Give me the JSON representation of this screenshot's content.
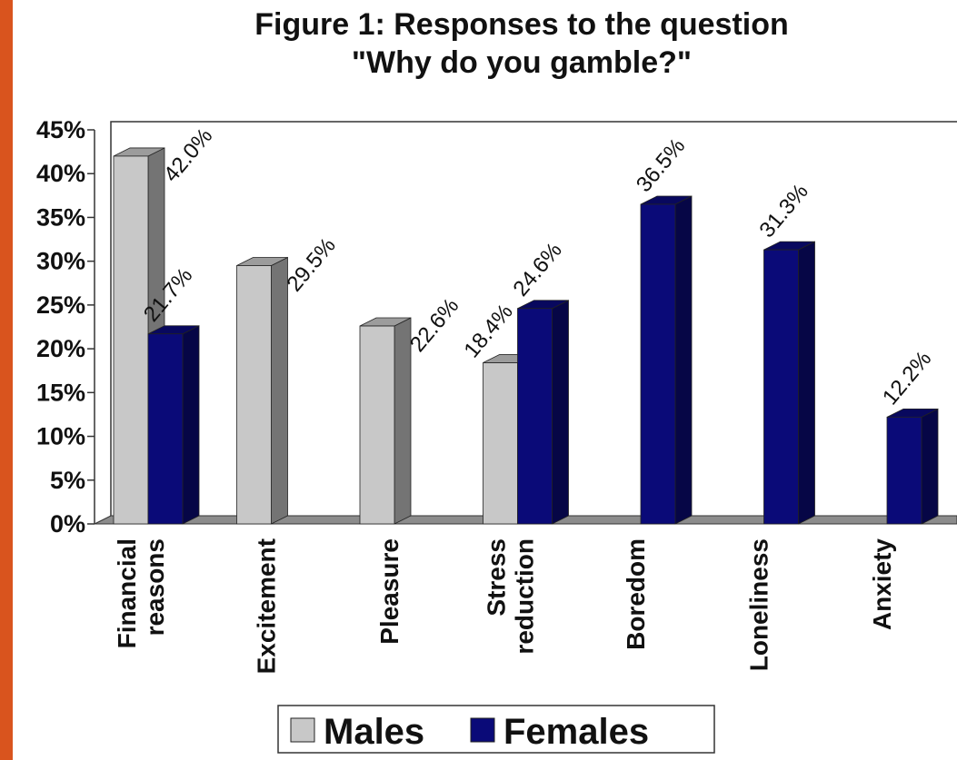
{
  "chart_data": {
    "type": "bar",
    "title": "Figure 1: Responses to the question",
    "subtitle": "\"Why do you gamble?\"",
    "categories": [
      [
        "Financial",
        "reasons"
      ],
      [
        "Excitement"
      ],
      [
        "Pleasure"
      ],
      [
        "Stress",
        "reduction"
      ],
      [
        "Boredom"
      ],
      [
        "Loneliness"
      ],
      [
        "Anxiety"
      ]
    ],
    "series": [
      {
        "name": "Males",
        "color": "#c8c8c8",
        "values": [
          42.0,
          29.5,
          22.6,
          18.4,
          null,
          null,
          null
        ],
        "labels": [
          "42.0%",
          "29.5%",
          "22.6%",
          "18.4%",
          null,
          null,
          null
        ]
      },
      {
        "name": "Females",
        "color": "#0a0a78",
        "values": [
          21.7,
          null,
          null,
          24.6,
          36.5,
          31.3,
          12.2
        ],
        "labels": [
          "21.7%",
          null,
          null,
          "24.6%",
          "36.5%",
          "31.3%",
          "12.2%"
        ]
      }
    ],
    "ylim": [
      0,
      45
    ],
    "yticks": [
      "0%",
      "5%",
      "10%",
      "15%",
      "20%",
      "25%",
      "30%",
      "35%",
      "40%",
      "45%"
    ],
    "grid": false,
    "legend": "bottom",
    "style": "3d-bars"
  }
}
